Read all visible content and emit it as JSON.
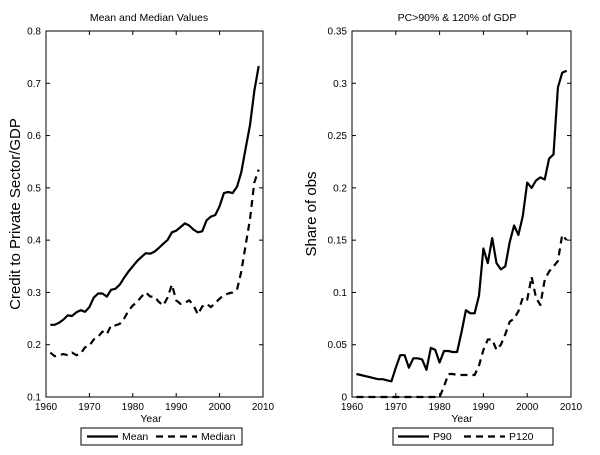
{
  "chart_data": [
    {
      "type": "line",
      "title": "Mean and Median Values",
      "xlabel": "Year",
      "ylabel": "Credit to Private Sector/GDP",
      "xlim": [
        1960,
        2010
      ],
      "ylim": [
        0.1,
        0.8
      ],
      "x_ticks": [
        "1960",
        "1970",
        "1980",
        "1990",
        "2000",
        "2010"
      ],
      "y_ticks": [
        "0.1",
        "0.2",
        "0.3",
        "0.4",
        "0.5",
        "0.6",
        "0.7",
        "0.8"
      ],
      "legend": "bottom-outside",
      "grid": false,
      "series": [
        {
          "name": "Mean",
          "style": "solid",
          "x": [
            1961,
            1962,
            1963,
            1964,
            1965,
            1966,
            1967,
            1968,
            1969,
            1970,
            1971,
            1972,
            1973,
            1974,
            1975,
            1976,
            1977,
            1978,
            1979,
            1980,
            1981,
            1982,
            1983,
            1984,
            1985,
            1986,
            1987,
            1988,
            1989,
            1990,
            1991,
            1992,
            1993,
            1994,
            1995,
            1996,
            1997,
            1998,
            1999,
            2000,
            2001,
            2002,
            2003,
            2004,
            2005,
            2006,
            2007,
            2008,
            2009
          ],
          "y": [
            0.238,
            0.238,
            0.242,
            0.248,
            0.256,
            0.255,
            0.262,
            0.266,
            0.263,
            0.272,
            0.29,
            0.298,
            0.298,
            0.292,
            0.305,
            0.307,
            0.315,
            0.328,
            0.34,
            0.35,
            0.36,
            0.368,
            0.375,
            0.374,
            0.378,
            0.385,
            0.393,
            0.4,
            0.415,
            0.418,
            0.425,
            0.432,
            0.428,
            0.42,
            0.415,
            0.417,
            0.438,
            0.445,
            0.448,
            0.465,
            0.49,
            0.492,
            0.49,
            0.502,
            0.53,
            0.575,
            0.62,
            0.685,
            0.733
          ]
        },
        {
          "name": "Median",
          "style": "dashed",
          "x": [
            1961,
            1962,
            1963,
            1964,
            1965,
            1966,
            1967,
            1968,
            1969,
            1970,
            1971,
            1972,
            1973,
            1974,
            1975,
            1976,
            1977,
            1978,
            1979,
            1980,
            1981,
            1982,
            1983,
            1984,
            1985,
            1986,
            1987,
            1988,
            1989,
            1990,
            1991,
            1992,
            1993,
            1994,
            1995,
            1996,
            1997,
            1998,
            1999,
            2000,
            2001,
            2002,
            2003,
            2004,
            2005,
            2006,
            2007,
            2008,
            2009
          ],
          "y": [
            0.185,
            0.178,
            0.18,
            0.182,
            0.18,
            0.185,
            0.18,
            0.183,
            0.195,
            0.198,
            0.21,
            0.215,
            0.225,
            0.22,
            0.237,
            0.237,
            0.24,
            0.25,
            0.265,
            0.275,
            0.282,
            0.292,
            0.3,
            0.292,
            0.292,
            0.282,
            0.275,
            0.29,
            0.315,
            0.285,
            0.278,
            0.28,
            0.285,
            0.275,
            0.258,
            0.273,
            0.278,
            0.272,
            0.28,
            0.288,
            0.295,
            0.298,
            0.3,
            0.305,
            0.34,
            0.39,
            0.44,
            0.51,
            0.535
          ]
        }
      ]
    },
    {
      "type": "line",
      "title": "PC>90% & 120% of GDP",
      "xlabel": "Year",
      "ylabel": "Share of obs",
      "xlim": [
        1960,
        2010
      ],
      "ylim": [
        0,
        0.35
      ],
      "x_ticks": [
        "1960",
        "1970",
        "1980",
        "1990",
        "2000",
        "2010"
      ],
      "y_ticks": [
        "0",
        "0.05",
        "0.1",
        "0.15",
        "0.2",
        "0.25",
        "0.3",
        "0.35"
      ],
      "legend": "bottom-outside",
      "grid": false,
      "series": [
        {
          "name": "P90",
          "style": "solid",
          "x": [
            1961,
            1962,
            1963,
            1964,
            1965,
            1966,
            1967,
            1968,
            1969,
            1970,
            1971,
            1972,
            1973,
            1974,
            1975,
            1976,
            1977,
            1978,
            1979,
            1980,
            1981,
            1982,
            1983,
            1984,
            1985,
            1986,
            1987,
            1988,
            1989,
            1990,
            1991,
            1992,
            1993,
            1994,
            1995,
            1996,
            1997,
            1998,
            1999,
            2000,
            2001,
            2002,
            2003,
            2004,
            2005,
            2006,
            2007,
            2008,
            2009
          ],
          "y": [
            0.022,
            0.021,
            0.02,
            0.019,
            0.018,
            0.017,
            0.017,
            0.016,
            0.015,
            0.028,
            0.04,
            0.04,
            0.028,
            0.037,
            0.037,
            0.036,
            0.026,
            0.047,
            0.045,
            0.033,
            0.044,
            0.044,
            0.043,
            0.043,
            0.062,
            0.083,
            0.08,
            0.08,
            0.097,
            0.142,
            0.128,
            0.152,
            0.128,
            0.122,
            0.125,
            0.148,
            0.164,
            0.155,
            0.173,
            0.205,
            0.2,
            0.207,
            0.21,
            0.208,
            0.228,
            0.232,
            0.296,
            0.31,
            0.312
          ]
        },
        {
          "name": "P120",
          "style": "dashed",
          "x": [
            1961,
            1962,
            1963,
            1964,
            1965,
            1966,
            1967,
            1968,
            1969,
            1970,
            1971,
            1972,
            1973,
            1974,
            1975,
            1976,
            1977,
            1978,
            1979,
            1980,
            1981,
            1982,
            1983,
            1984,
            1985,
            1986,
            1987,
            1988,
            1989,
            1990,
            1991,
            1992,
            1993,
            1994,
            1995,
            1996,
            1997,
            1998,
            1999,
            2000,
            2001,
            2002,
            2003,
            2004,
            2005,
            2006,
            2007,
            2008,
            2009
          ],
          "y": [
            0,
            0,
            0,
            0,
            0,
            0,
            0,
            0,
            0,
            0,
            0,
            0,
            0,
            0,
            0,
            0,
            0,
            0,
            0,
            0,
            0.01,
            0.022,
            0.022,
            0.021,
            0.021,
            0.021,
            0.021,
            0.021,
            0.03,
            0.045,
            0.055,
            0.055,
            0.045,
            0.05,
            0.06,
            0.072,
            0.075,
            0.082,
            0.095,
            0.093,
            0.115,
            0.095,
            0.088,
            0.112,
            0.12,
            0.125,
            0.13,
            0.155,
            0.15
          ]
        }
      ]
    }
  ]
}
